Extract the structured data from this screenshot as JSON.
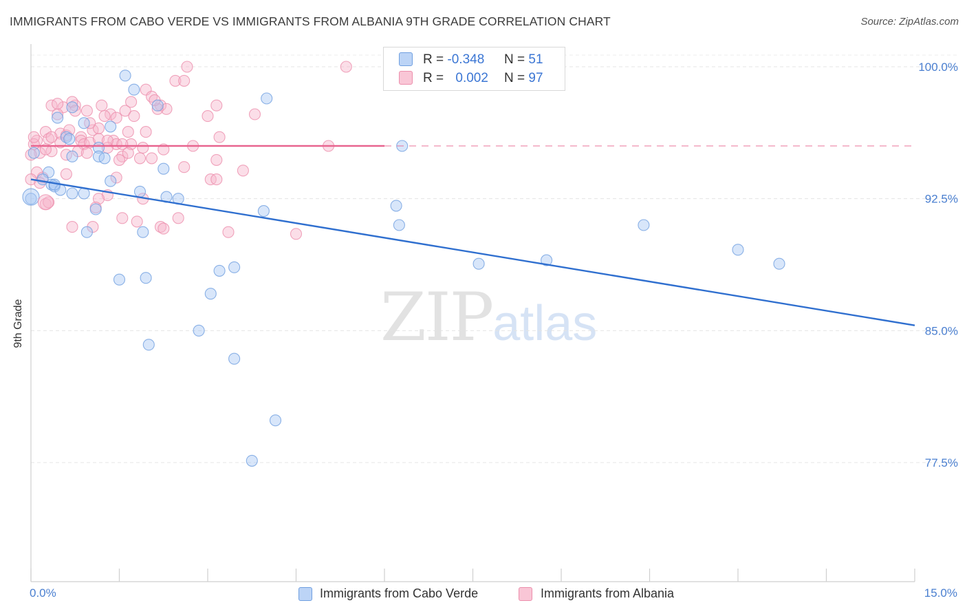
{
  "header": {
    "title": "IMMIGRANTS FROM CABO VERDE VS IMMIGRANTS FROM ALBANIA 9TH GRADE CORRELATION CHART",
    "source": "Source: ZipAtlas.com"
  },
  "watermark": {
    "zip": "ZIP",
    "atlas": "atlas"
  },
  "legend_top": [
    {
      "r_label": "R =",
      "r_value": "-0.348",
      "n_label": "N =",
      "n_value": "51"
    },
    {
      "r_label": "R =",
      "r_value": "0.002",
      "n_label": "N =",
      "n_value": "97"
    }
  ],
  "legend_bottom": [
    {
      "label": "Immigrants from Cabo Verde"
    },
    {
      "label": "Immigrants from Albania"
    }
  ],
  "colors": {
    "cabo_fill": "#a9c8f3",
    "cabo_stroke": "#6f9fe0",
    "cabo_line": "#2f6fcf",
    "albania_fill": "#f7b6cb",
    "albania_stroke": "#ec8eac",
    "albania_line": "#e8648f",
    "grid": "#e4e4e4",
    "tick_label": "#4a7fd0"
  },
  "chart_data": {
    "type": "scatter",
    "title": "IMMIGRANTS FROM CABO VERDE VS IMMIGRANTS FROM ALBANIA 9TH GRADE CORRELATION CHART",
    "xlabel": "",
    "ylabel": "9th Grade",
    "xlim": [
      0,
      15
    ],
    "ylim": [
      70,
      101
    ],
    "x_tick_labels": [
      "0.0%",
      "15.0%"
    ],
    "y_ticks": [
      77.5,
      85.0,
      92.5,
      100.0
    ],
    "y_tick_labels": [
      "77.5%",
      "85.0%",
      "92.5%",
      "100.0%"
    ],
    "grid": true,
    "series": [
      {
        "name": "Immigrants from Cabo Verde",
        "trend": {
          "x": [
            0,
            15
          ],
          "y": [
            93.6,
            85.3
          ]
        },
        "points": [
          [
            1.6,
            99.5
          ],
          [
            1.75,
            98.7
          ],
          [
            4.0,
            98.2
          ],
          [
            2.15,
            97.8
          ],
          [
            0.45,
            97.1
          ],
          [
            0.7,
            97.7
          ],
          [
            0.9,
            96.8
          ],
          [
            1.35,
            96.6
          ],
          [
            0.6,
            96.0
          ],
          [
            0.65,
            95.9
          ],
          [
            0.05,
            95.1
          ],
          [
            1.15,
            95.4
          ],
          [
            0.7,
            94.9
          ],
          [
            1.15,
            94.9
          ],
          [
            1.25,
            94.8
          ],
          [
            2.25,
            94.2
          ],
          [
            0.3,
            94.0
          ],
          [
            0.2,
            93.6
          ],
          [
            0.35,
            93.3
          ],
          [
            0.4,
            93.2
          ],
          [
            1.35,
            93.5
          ],
          [
            0.5,
            93.0
          ],
          [
            0.7,
            92.8
          ],
          [
            0.9,
            92.8
          ],
          [
            1.85,
            92.9
          ],
          [
            2.3,
            92.6
          ],
          [
            2.5,
            92.5
          ],
          [
            6.3,
            95.5
          ],
          [
            0.0,
            92.5
          ],
          [
            1.1,
            91.9
          ],
          [
            3.95,
            91.8
          ],
          [
            6.2,
            92.1
          ],
          [
            6.25,
            91.0
          ],
          [
            10.4,
            91.0
          ],
          [
            0.95,
            90.6
          ],
          [
            1.9,
            90.6
          ],
          [
            12.0,
            89.6
          ],
          [
            8.75,
            89.0
          ],
          [
            7.6,
            88.8
          ],
          [
            12.7,
            88.8
          ],
          [
            3.45,
            88.6
          ],
          [
            3.2,
            88.4
          ],
          [
            1.5,
            87.9
          ],
          [
            1.95,
            88.0
          ],
          [
            3.05,
            87.1
          ],
          [
            2.85,
            85.0
          ],
          [
            2.0,
            84.2
          ],
          [
            3.45,
            83.4
          ],
          [
            4.15,
            79.9
          ],
          [
            3.75,
            77.6
          ],
          [
            0.4,
            93.3
          ]
        ]
      },
      {
        "name": "Immigrants from Albania",
        "trend": {
          "x": [
            0,
            6.0
          ],
          "y": [
            95.5,
            95.5
          ]
        },
        "trend_dashed": {
          "x": [
            6.0,
            15
          ],
          "y": [
            95.5,
            95.5
          ]
        },
        "points": [
          [
            5.35,
            100.0
          ],
          [
            2.65,
            100.0
          ],
          [
            2.45,
            99.2
          ],
          [
            2.6,
            99.2
          ],
          [
            1.95,
            98.7
          ],
          [
            2.05,
            98.3
          ],
          [
            0.35,
            97.8
          ],
          [
            0.55,
            97.7
          ],
          [
            0.75,
            97.8
          ],
          [
            1.2,
            97.8
          ],
          [
            2.2,
            97.8
          ],
          [
            3.15,
            97.8
          ],
          [
            0.7,
            98.0
          ],
          [
            1.6,
            97.5
          ],
          [
            2.3,
            97.6
          ],
          [
            1.35,
            97.3
          ],
          [
            1.45,
            97.1
          ],
          [
            1.75,
            97.2
          ],
          [
            0.45,
            97.3
          ],
          [
            0.95,
            97.5
          ],
          [
            3.0,
            97.2
          ],
          [
            3.8,
            97.3
          ],
          [
            0.25,
            96.3
          ],
          [
            0.5,
            96.2
          ],
          [
            1.05,
            96.4
          ],
          [
            1.15,
            96.5
          ],
          [
            0.85,
            96.0
          ],
          [
            1.65,
            96.3
          ],
          [
            1.95,
            96.3
          ],
          [
            0.6,
            96.1
          ],
          [
            0.1,
            95.8
          ],
          [
            0.3,
            95.9
          ],
          [
            0.5,
            95.7
          ],
          [
            0.85,
            95.8
          ],
          [
            0.9,
            95.6
          ],
          [
            1.0,
            95.7
          ],
          [
            1.15,
            95.9
          ],
          [
            1.4,
            95.8
          ],
          [
            1.45,
            95.6
          ],
          [
            1.7,
            95.6
          ],
          [
            0.05,
            95.6
          ],
          [
            0.15,
            95.1
          ],
          [
            0.35,
            95.2
          ],
          [
            0.6,
            95.0
          ],
          [
            0.8,
            95.2
          ],
          [
            1.3,
            95.4
          ],
          [
            1.9,
            95.4
          ],
          [
            2.25,
            95.3
          ],
          [
            2.75,
            95.5
          ],
          [
            3.2,
            96.0
          ],
          [
            5.05,
            95.5
          ],
          [
            0.0,
            95.0
          ],
          [
            1.55,
            94.9
          ],
          [
            1.85,
            94.8
          ],
          [
            2.05,
            94.8
          ],
          [
            1.5,
            94.7
          ],
          [
            2.6,
            94.3
          ],
          [
            3.15,
            94.7
          ],
          [
            3.6,
            94.1
          ],
          [
            0.1,
            94.0
          ],
          [
            0.2,
            93.7
          ],
          [
            0.6,
            93.9
          ],
          [
            1.45,
            93.7
          ],
          [
            3.05,
            93.6
          ],
          [
            3.15,
            93.6
          ],
          [
            0.0,
            93.6
          ],
          [
            1.3,
            92.7
          ],
          [
            1.15,
            92.5
          ],
          [
            1.9,
            92.5
          ],
          [
            0.25,
            92.2
          ],
          [
            1.1,
            92.0
          ],
          [
            1.55,
            91.4
          ],
          [
            1.8,
            91.2
          ],
          [
            2.5,
            91.4
          ],
          [
            0.7,
            90.9
          ],
          [
            1.05,
            90.9
          ],
          [
            2.2,
            90.9
          ],
          [
            2.25,
            90.8
          ],
          [
            3.35,
            90.6
          ],
          [
            4.5,
            90.5
          ],
          [
            0.25,
            95.3
          ],
          [
            0.65,
            96.4
          ],
          [
            1.25,
            97.2
          ],
          [
            1.7,
            98.0
          ],
          [
            2.15,
            97.6
          ],
          [
            0.45,
            97.9
          ],
          [
            0.95,
            95.1
          ],
          [
            1.55,
            95.6
          ],
          [
            1.65,
            95.1
          ],
          [
            0.05,
            96.0
          ],
          [
            0.15,
            93.4
          ],
          [
            0.3,
            92.3
          ],
          [
            1.0,
            96.8
          ],
          [
            2.1,
            98.1
          ],
          [
            0.35,
            96.0
          ],
          [
            0.75,
            97.5
          ],
          [
            1.3,
            95.8
          ]
        ]
      }
    ]
  }
}
